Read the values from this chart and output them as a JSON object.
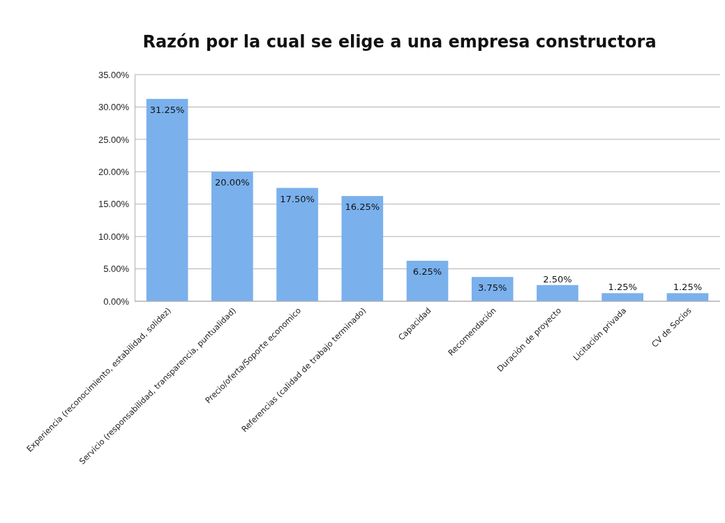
{
  "chart_data": {
    "type": "bar",
    "title": "Razón por la cual se elige a una empresa constructora",
    "categories": [
      "Experiencia (reconocimiento, estabilidad, solidez)",
      "Servicio (responsabilidad, transparencia, puntualidad)",
      "Precio/oferta/Soporte economico",
      "Referencias (calidad de trabajo terminado)",
      "Capacidad",
      "Recomendación",
      "Duración de proyecto",
      "Licitación privada",
      "CV de Socios"
    ],
    "values": [
      31.25,
      20,
      17.5,
      16.25,
      6.25,
      3.75,
      2.5,
      1.25,
      1.25
    ],
    "value_labels": [
      "31.25%",
      "20.00%",
      "17.50%",
      "16.25%",
      "6.25%",
      "3.75%",
      "2.50%",
      "1.25%",
      "1.25%"
    ],
    "color": "#7ab0ec",
    "ylim": [
      0,
      35
    ],
    "yticks": [
      {
        "value": 0,
        "label": "0.00%"
      },
      {
        "value": 5,
        "label": "5.00%"
      },
      {
        "value": 10,
        "label": "10.00%"
      },
      {
        "value": 15,
        "label": "15.00%"
      },
      {
        "value": 20,
        "label": "20.00%"
      },
      {
        "value": 25,
        "label": "25.00%"
      },
      {
        "value": 30,
        "label": "30.00%"
      },
      {
        "value": 35,
        "label": "35.00%"
      }
    ],
    "grid": "y"
  }
}
